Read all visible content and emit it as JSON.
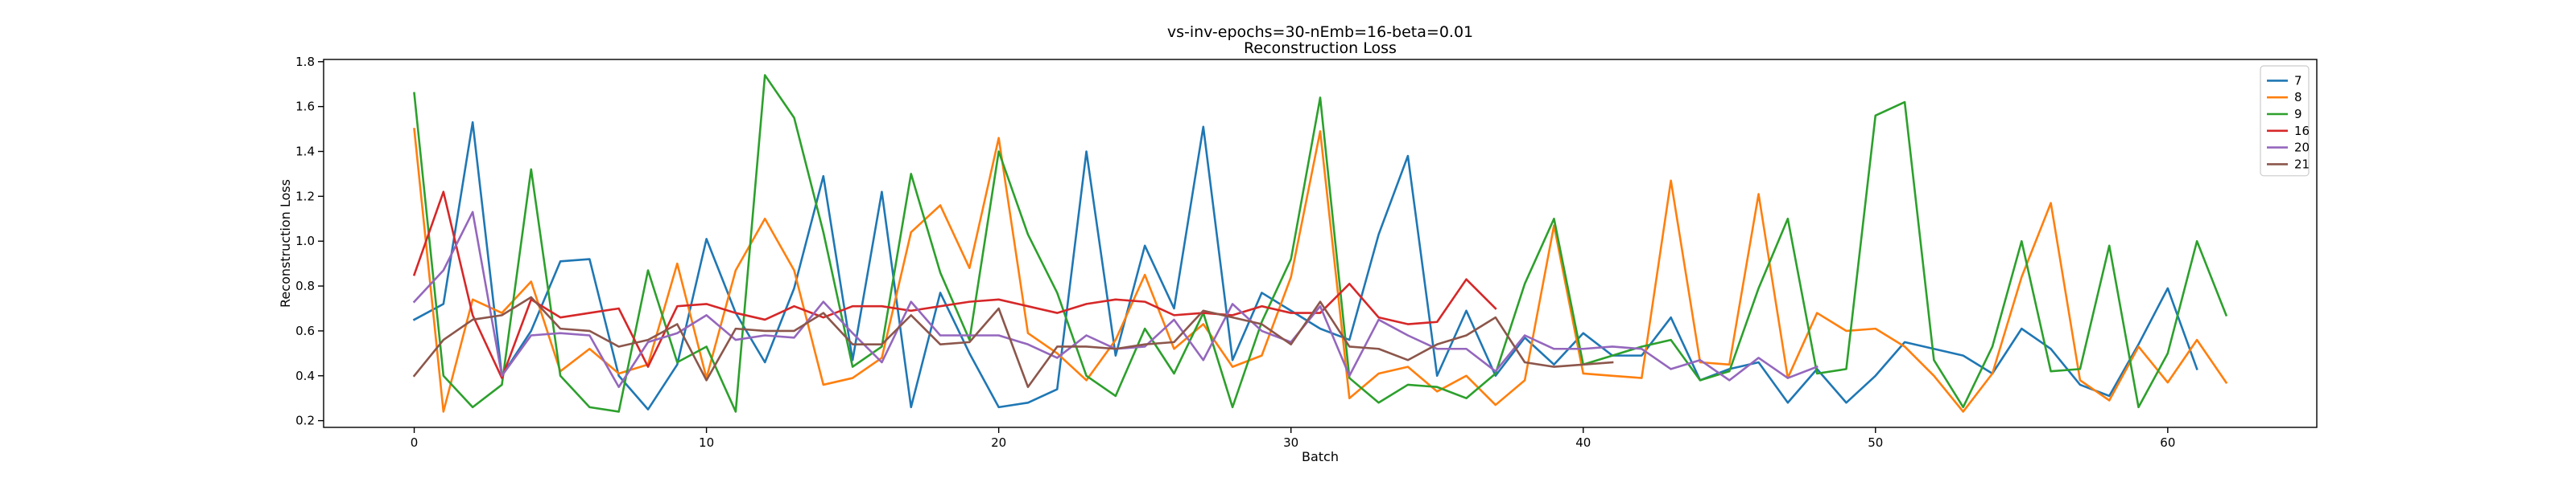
{
  "chart_data": {
    "type": "line",
    "title": "vs-inv-epochs=30-nEmb=16-beta=0.01",
    "subtitle": "Reconstruction Loss",
    "xlabel": "Batch",
    "ylabel": "Reconstruction Loss",
    "xlim": [
      -3.1,
      65.1
    ],
    "ylim": [
      0.17,
      1.81
    ],
    "xticks": [
      0,
      10,
      20,
      30,
      40,
      50,
      60
    ],
    "yticks": [
      0.2,
      0.4,
      0.6,
      0.8,
      1.0,
      1.2,
      1.4,
      1.6,
      1.8
    ],
    "grid": false,
    "legend_position": "top-right",
    "series": [
      {
        "name": "7",
        "color": "#1f77b4",
        "values": [
          0.65,
          0.72,
          1.53,
          0.4,
          0.6,
          0.91,
          0.92,
          0.4,
          0.25,
          0.45,
          1.01,
          0.68,
          0.46,
          0.79,
          1.29,
          0.47,
          1.22,
          0.26,
          0.77,
          0.5,
          0.26,
          0.28,
          0.34,
          1.4,
          0.49,
          0.98,
          0.7,
          1.51,
          0.47,
          0.77,
          0.69,
          0.61,
          0.56,
          1.03,
          1.38,
          0.4,
          0.69,
          0.4,
          0.57,
          0.45,
          0.59,
          0.49,
          0.49,
          0.66,
          0.38,
          0.43,
          0.46,
          0.28,
          0.43,
          0.28,
          0.4,
          0.55,
          0.52,
          0.49,
          0.41,
          0.61,
          0.52,
          0.36,
          0.31,
          0.54,
          0.79,
          0.43
        ]
      },
      {
        "name": "8",
        "color": "#ff7f0e",
        "values": [
          1.5,
          0.24,
          0.74,
          0.68,
          0.82,
          0.42,
          0.52,
          0.41,
          0.45,
          0.9,
          0.39,
          0.87,
          1.1,
          0.87,
          0.36,
          0.39,
          0.48,
          1.04,
          1.16,
          0.88,
          1.46,
          0.59,
          0.5,
          0.38,
          0.56,
          0.85,
          0.52,
          0.63,
          0.44,
          0.49,
          0.84,
          1.49,
          0.3,
          0.41,
          0.44,
          0.33,
          0.4,
          0.27,
          0.38,
          1.07,
          0.41,
          0.4,
          0.39,
          1.27,
          0.46,
          0.45,
          1.21,
          0.39,
          0.68,
          0.6,
          0.61,
          0.53,
          0.4,
          0.24,
          0.41,
          0.84,
          1.17,
          0.38,
          0.29,
          0.53,
          0.37,
          0.56,
          0.37
        ]
      },
      {
        "name": "9",
        "color": "#2ca02c",
        "values": [
          1.66,
          0.4,
          0.26,
          0.36,
          1.32,
          0.4,
          0.26,
          0.24,
          0.87,
          0.46,
          0.53,
          0.24,
          1.74,
          1.55,
          1.04,
          0.44,
          0.53,
          1.3,
          0.86,
          0.56,
          1.4,
          1.03,
          0.77,
          0.4,
          0.31,
          0.61,
          0.41,
          0.68,
          0.26,
          0.64,
          0.92,
          1.64,
          0.39,
          0.28,
          0.36,
          0.35,
          0.3,
          0.41,
          0.81,
          1.1,
          0.45,
          0.49,
          0.53,
          0.56,
          0.38,
          0.42,
          0.79,
          1.1,
          0.41,
          0.43,
          1.56,
          1.62,
          0.47,
          0.26,
          0.53,
          1.0,
          0.42,
          0.43,
          0.98,
          0.26,
          0.5,
          1.0,
          0.67
        ]
      },
      {
        "name": "16",
        "color": "#d62728",
        "values": [
          0.85,
          1.22,
          0.67,
          0.39,
          0.74,
          0.66,
          0.68,
          0.7,
          0.44,
          0.71,
          0.72,
          0.68,
          0.65,
          0.71,
          0.66,
          0.71,
          0.71,
          0.69,
          0.71,
          0.73,
          0.74,
          0.71,
          0.68,
          0.72,
          0.74,
          0.73,
          0.67,
          0.68,
          0.67,
          0.71,
          0.68,
          0.68,
          0.81,
          0.66,
          0.63,
          0.64,
          0.83,
          0.7
        ]
      },
      {
        "name": "20",
        "color": "#9467bd",
        "values": [
          0.73,
          0.87,
          1.13,
          0.4,
          0.58,
          0.59,
          0.58,
          0.35,
          0.55,
          0.59,
          0.67,
          0.56,
          0.58,
          0.57,
          0.73,
          0.59,
          0.46,
          0.73,
          0.58,
          0.58,
          0.58,
          0.54,
          0.48,
          0.58,
          0.52,
          0.53,
          0.65,
          0.47,
          0.72,
          0.6,
          0.55,
          0.71,
          0.4,
          0.65,
          0.58,
          0.52,
          0.52,
          0.42,
          0.58,
          0.52,
          0.52,
          0.53,
          0.52,
          0.43,
          0.47,
          0.38,
          0.48,
          0.39,
          0.44
        ]
      },
      {
        "name": "21",
        "color": "#8c564b",
        "values": [
          0.4,
          0.56,
          0.65,
          0.67,
          0.75,
          0.61,
          0.6,
          0.53,
          0.56,
          0.63,
          0.38,
          0.61,
          0.6,
          0.6,
          0.68,
          0.54,
          0.54,
          0.67,
          0.54,
          0.55,
          0.7,
          0.35,
          0.53,
          0.53,
          0.52,
          0.54,
          0.55,
          0.69,
          0.66,
          0.63,
          0.54,
          0.73,
          0.53,
          0.52,
          0.47,
          0.54,
          0.58,
          0.66,
          0.46,
          0.44,
          0.45,
          0.46
        ]
      }
    ]
  }
}
